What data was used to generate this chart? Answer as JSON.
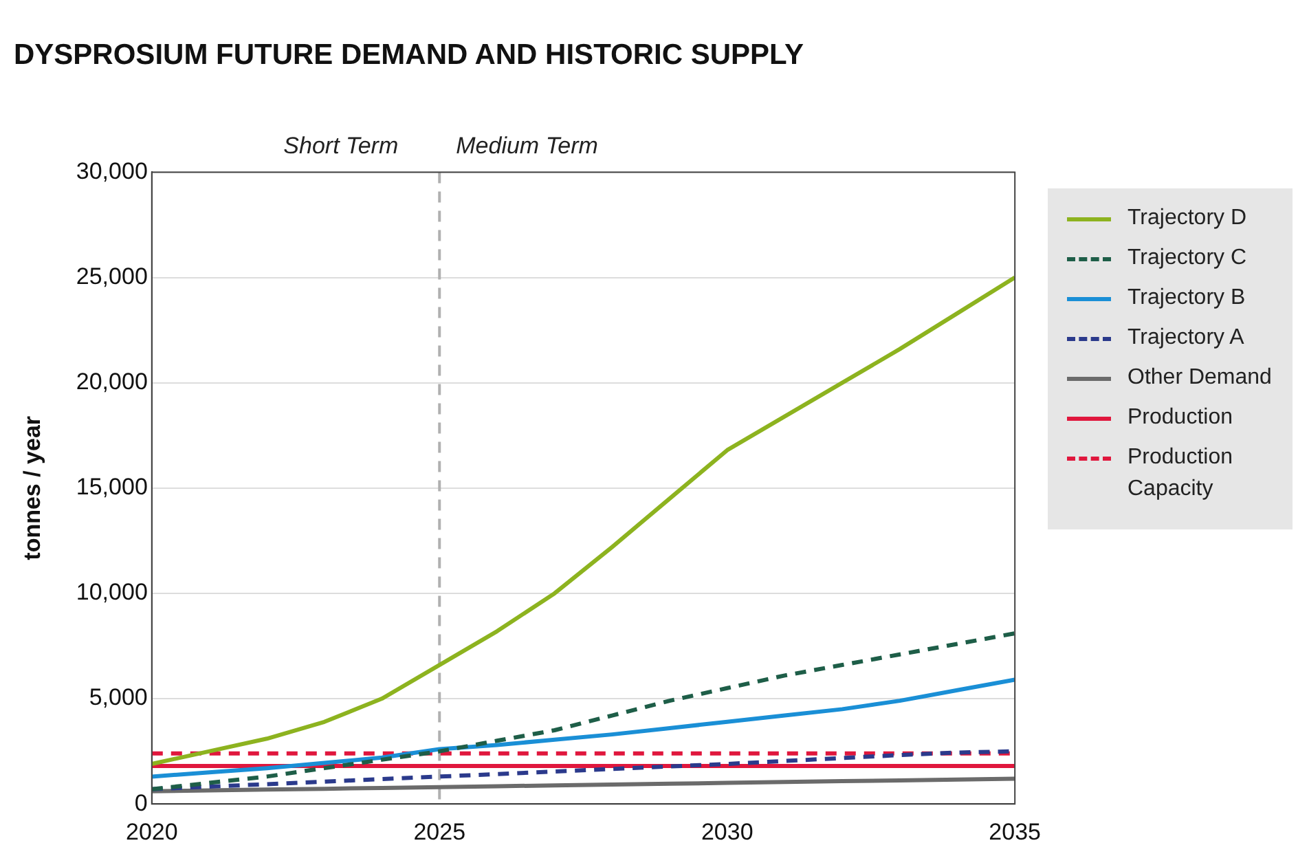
{
  "chart_data": {
    "type": "line",
    "title": "DYSPROSIUM FUTURE DEMAND AND HISTORIC SUPPLY",
    "ylabel": "tonnes / year",
    "annotations": [
      "Short Term",
      "Medium Term"
    ],
    "x": [
      2020,
      2021,
      2022,
      2023,
      2024,
      2025,
      2026,
      2027,
      2028,
      2029,
      2030,
      2031,
      2032,
      2033,
      2034,
      2035
    ],
    "series": [
      {
        "name": "Trajectory D",
        "color": "#8db31f",
        "line_style": "solid",
        "values": [
          1900,
          2500,
          3100,
          3900,
          5000,
          6600,
          8200,
          10000,
          12200,
          14500,
          16800,
          18400,
          20000,
          21600,
          23300,
          25000
        ]
      },
      {
        "name": "Trajectory C",
        "color": "#1e5e48",
        "line_style": "dashed",
        "values": [
          700,
          1000,
          1300,
          1700,
          2100,
          2500,
          3000,
          3500,
          4200,
          4900,
          5500,
          6100,
          6600,
          7100,
          7600,
          8100
        ]
      },
      {
        "name": "Trajectory B",
        "color": "#1a8fd6",
        "line_style": "solid",
        "values": [
          1300,
          1500,
          1700,
          1950,
          2200,
          2600,
          2800,
          3050,
          3300,
          3600,
          3900,
          4200,
          4500,
          4900,
          5400,
          5900
        ]
      },
      {
        "name": "Trajectory A",
        "color": "#2b3a8c",
        "line_style": "dashed",
        "values": [
          700,
          820,
          940,
          1060,
          1180,
          1300,
          1420,
          1540,
          1660,
          1780,
          1900,
          2040,
          2180,
          2320,
          2440,
          2500
        ]
      },
      {
        "name": "Other Demand",
        "color": "#6b6b6b",
        "line_style": "solid",
        "values": [
          600,
          640,
          680,
          720,
          760,
          800,
          840,
          880,
          920,
          960,
          1000,
          1040,
          1080,
          1120,
          1160,
          1200
        ]
      },
      {
        "name": "Production",
        "color": "#e0173d",
        "line_style": "solid",
        "values": [
          1800,
          1800,
          1800,
          1800,
          1800,
          1800,
          1800,
          1800,
          1800,
          1800,
          1800,
          1800,
          1800,
          1800,
          1800,
          1800
        ]
      },
      {
        "name": "Production Capacity",
        "color": "#e0173d",
        "line_style": "dashed",
        "values": [
          2400,
          2400,
          2400,
          2400,
          2400,
          2400,
          2400,
          2400,
          2400,
          2400,
          2400,
          2400,
          2400,
          2400,
          2400,
          2400
        ]
      }
    ],
    "xlim": [
      2020,
      2035
    ],
    "xticks": [
      2020,
      2025,
      2030,
      2035
    ],
    "ylim": [
      0,
      30000
    ],
    "yticks": [
      {
        "value": 0,
        "label": "0"
      },
      {
        "value": 5000,
        "label": "5,000"
      },
      {
        "value": 10000,
        "label": "10,000"
      },
      {
        "value": 15000,
        "label": "15,000"
      },
      {
        "value": 20000,
        "label": "20,000"
      },
      {
        "value": 25000,
        "label": "25,000"
      },
      {
        "value": 30000,
        "label": "30,000"
      }
    ],
    "ref_lines": [
      {
        "axis": "x",
        "value": 2025,
        "color": "#b0b0b0",
        "line_style": "dashed"
      }
    ],
    "grid": "y",
    "legend": "right",
    "marker": "none"
  }
}
